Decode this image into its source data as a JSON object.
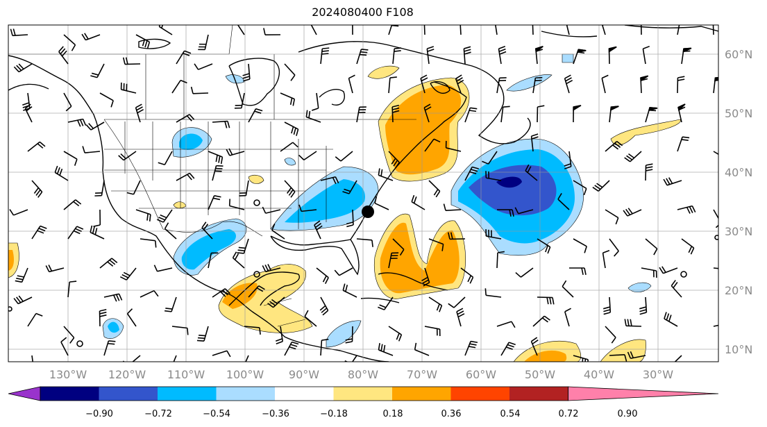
{
  "title": "2024080400 F108",
  "map": {
    "lon_range": [
      -140,
      -20
    ],
    "lat_range": [
      8,
      65
    ],
    "lon_ticks": [
      "130°W",
      "120°W",
      "110°W",
      "100°W",
      "90°W",
      "80°W",
      "70°W",
      "60°W",
      "50°W",
      "40°W",
      "30°W"
    ],
    "lat_ticks": [
      "60°N",
      "50°N",
      "40°N",
      "30°N",
      "20°N",
      "10°N"
    ],
    "gridlines": true,
    "features": [
      "coastlines",
      "country-borders",
      "us-state-borders",
      "wind-barbs",
      "tropical-cyclone-marker"
    ]
  },
  "colorbar": {
    "ticks": [
      "−0.90",
      "−0.72",
      "−0.54",
      "−0.36",
      "−0.18",
      "0.18",
      "0.36",
      "0.54",
      "0.72",
      "0.90"
    ],
    "colors": [
      "#9933cc",
      "#000080",
      "#3355cc",
      "#00bbff",
      "#aaddff",
      "#ffffff",
      "#ffe680",
      "#ffa500",
      "#ff4400",
      "#b22222",
      "#ff80aa"
    ],
    "extend": "both"
  }
}
